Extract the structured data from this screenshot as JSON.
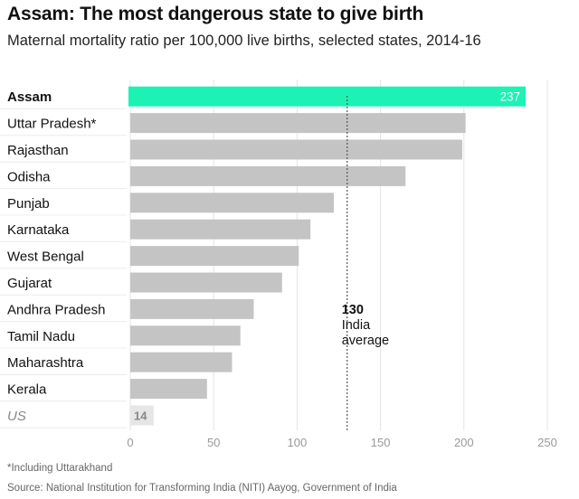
{
  "title": "Assam: The most dangerous state to give birth",
  "subtitle": "Maternal mortality ratio per 100,000 live births, selected states, 2014-16",
  "footnote": "*Including Uttarakhand",
  "source": "Source: National Institution for Transforming India (NITI) Aayog, Government of India",
  "colors": {
    "highlight": "#1cf2b4",
    "bar": "#c4c4c4",
    "us_bar": "#e6e6e6",
    "grid": "#e4e4e4",
    "label_dark": "#111111",
    "label_muted": "#888888",
    "reference_line": "#555555"
  },
  "chart_data": {
    "type": "bar",
    "orientation": "horizontal",
    "categories": [
      "Assam",
      "Uttar Pradesh*",
      "Rajasthan",
      "Odisha",
      "Punjab",
      "Karnataka",
      "West Bengal",
      "Gujarat",
      "Andhra Pradesh",
      "Tamil Nadu",
      "Maharashtra",
      "Kerala",
      "US"
    ],
    "values": [
      237,
      201,
      199,
      165,
      122,
      108,
      101,
      91,
      74,
      66,
      61,
      46,
      14
    ],
    "value_labels": [
      "237",
      "",
      "",
      "",
      "",
      "",
      "",
      "",
      "",
      "",
      "",
      "",
      "14"
    ],
    "highlighted_category": "Assam",
    "xlim": [
      0,
      250
    ],
    "xticks": [
      0,
      50,
      100,
      150,
      200,
      250
    ],
    "grid": true,
    "reference": {
      "value": 130,
      "label_value": "130",
      "label_line1": "India",
      "label_line2": "average"
    }
  }
}
